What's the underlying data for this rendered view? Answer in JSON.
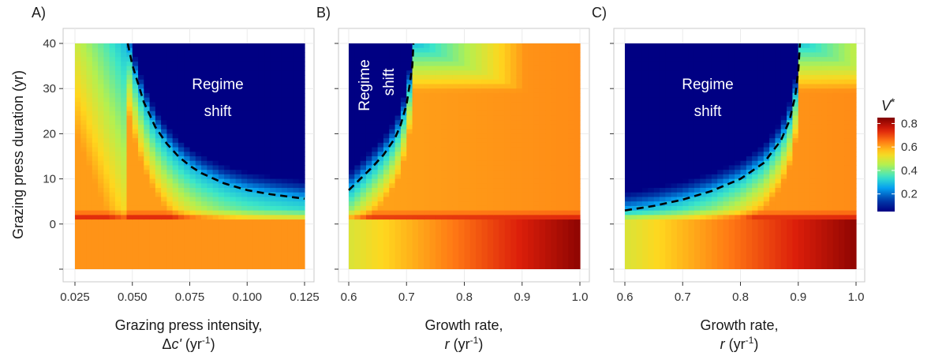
{
  "chart_data": [
    {
      "type": "heatmap",
      "panel_label": "A)",
      "x": {
        "min": 0.025,
        "max": 0.125
      },
      "y": {
        "min": -10,
        "max": 40
      },
      "xticks": [
        0.025,
        0.05,
        0.075,
        0.1,
        0.125
      ],
      "xtick_labels": [
        "0.025",
        "0.050",
        "0.075",
        "0.100",
        "0.125"
      ],
      "yticks": [
        0,
        10,
        20,
        30,
        40
      ],
      "ytick_labels": [
        "0",
        "10",
        "20",
        "30",
        "40"
      ],
      "xlabel_line1": "Grazing press intensity,",
      "xlabel_line2_pre": "Δ",
      "xlabel_line2_var": "c'",
      "xlabel_line2_unit": " (yr",
      "xlabel_line2_exp": "-1",
      "xlabel_line2_post": ")",
      "ylabel": "Grazing press duration (yr)",
      "annotation": [
        "Regime",
        "shift"
      ],
      "threshold_curve": {
        "x": [
          0.048,
          0.05,
          0.055,
          0.06,
          0.065,
          0.07,
          0.075,
          0.08,
          0.09,
          0.1,
          0.11,
          0.125
        ],
        "y": [
          40,
          35.2,
          27.0,
          21.5,
          17.8,
          15.0,
          12.9,
          11.3,
          9.0,
          7.5,
          6.6,
          5.6
        ]
      },
      "low_press_band_value": 0.62,
      "grid": true
    },
    {
      "type": "heatmap",
      "panel_label": "B)",
      "x": {
        "min": 0.6,
        "max": 1.0
      },
      "y": {
        "min": -10,
        "max": 40
      },
      "xticks": [
        0.6,
        0.7,
        0.8,
        0.9,
        1.0
      ],
      "xtick_labels": [
        "0.6",
        "0.7",
        "0.8",
        "0.9",
        "1.0"
      ],
      "yticks": [
        0,
        10,
        20,
        30,
        40
      ],
      "xlabel_line1": "Growth rate,",
      "xlabel_line2_var": "r",
      "xlabel_line2_unit": " (yr",
      "xlabel_line2_exp": "-1",
      "xlabel_line2_post": ")",
      "annotation": [
        "Regime",
        "shift"
      ],
      "threshold_curve": {
        "x": [
          0.6,
          0.62,
          0.64,
          0.66,
          0.68,
          0.69,
          0.7,
          0.705,
          0.71,
          0.712
        ],
        "y": [
          7.5,
          10.0,
          12.5,
          15.3,
          19.0,
          22.0,
          26.5,
          30.5,
          35.0,
          40
        ]
      },
      "low_press_band_range": [
        0.5,
        0.83
      ],
      "grid": true
    },
    {
      "type": "heatmap",
      "panel_label": "C)",
      "x": {
        "min": 0.6,
        "max": 1.0
      },
      "y": {
        "min": -10,
        "max": 40
      },
      "xticks": [
        0.6,
        0.7,
        0.8,
        0.9,
        1.0
      ],
      "xtick_labels": [
        "0.6",
        "0.7",
        "0.8",
        "0.9",
        "1.0"
      ],
      "yticks": [
        0,
        10,
        20,
        30,
        40
      ],
      "xlabel_line1": "Growth rate,",
      "xlabel_line2_var": "r",
      "xlabel_line2_unit": " (yr",
      "xlabel_line2_exp": "-1",
      "xlabel_line2_post": ")",
      "annotation": [
        "Regime",
        "shift"
      ],
      "threshold_curve": {
        "x": [
          0.6,
          0.65,
          0.7,
          0.75,
          0.8,
          0.84,
          0.87,
          0.885,
          0.895,
          0.9,
          0.903
        ],
        "y": [
          3.0,
          4.0,
          5.4,
          7.3,
          10.0,
          13.5,
          18.5,
          23.0,
          28.5,
          34.0,
          40
        ]
      },
      "low_press_band_range": [
        0.5,
        0.83
      ],
      "grid": true
    }
  ],
  "legend": {
    "title_var": "V",
    "title_sup": "*",
    "min": 0.05,
    "max": 0.85,
    "ticks": [
      0.2,
      0.4,
      0.6,
      0.8
    ],
    "tick_labels": [
      "0.2",
      "0.4",
      "0.6",
      "0.8"
    ]
  }
}
